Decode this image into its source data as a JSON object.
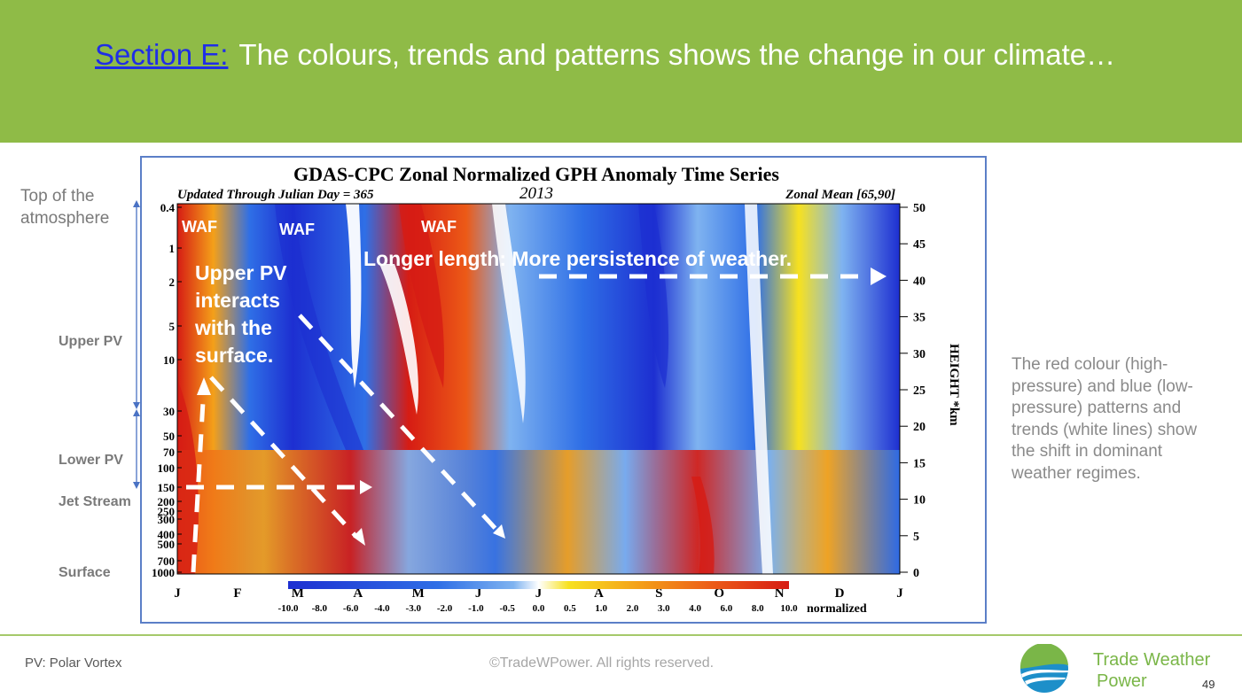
{
  "slide": {
    "title_link": "Section E:",
    "title_text": "The colours, trends and patterns shows the change in our climate…",
    "page_number": "49"
  },
  "left_labels": {
    "top": "Top of the atmosphere",
    "upper_pv": "Upper PV",
    "lower_pv": "Lower PV",
    "jet_stream": "Jet Stream",
    "surface": "Surface"
  },
  "chart": {
    "title": "GDAS-CPC Zonal Normalized GPH Anomaly Time Series",
    "subtitle_left": "Updated Through Julian Day = 365",
    "year": "2013",
    "subtitle_right": "Zonal Mean [65,90]",
    "y_left_ticks": [
      "0.4",
      "1",
      "2",
      "5",
      "10",
      "30",
      "50",
      "70",
      "100",
      "150",
      "200",
      "250",
      "300",
      "400",
      "500",
      "700",
      "1000"
    ],
    "y_right_label": "HEIGHT *km",
    "y_right_ticks": [
      "50",
      "45",
      "40",
      "35",
      "30",
      "25",
      "20",
      "15",
      "10",
      "5",
      "0"
    ],
    "months": [
      "J",
      "F",
      "M",
      "A",
      "M",
      "J",
      "J",
      "A",
      "S",
      "O",
      "N",
      "D",
      "J"
    ],
    "colorbar_ticks": [
      "-10.0",
      "-8.0",
      "-6.0",
      "-4.0",
      "-3.0",
      "-2.0",
      "-1.0",
      "-0.5",
      "0.0",
      "0.5",
      "1.0",
      "2.0",
      "3.0",
      "4.0",
      "6.0",
      "8.0",
      "10.0"
    ],
    "colorbar_label": "normalized",
    "colors": {
      "deep_blue": "#1d2fd1",
      "blue": "#2f6fe6",
      "light_blue": "#7fb3f0",
      "white": "#ffffff",
      "yellow": "#f7e11f",
      "orange": "#f4a019",
      "red_orange": "#ec5a17",
      "red": "#d61c14"
    },
    "annotations": {
      "waf_1": "WAF",
      "waf_2": "WAF",
      "waf_3": "WAF",
      "longer_length": "Longer length: More persistence of weather.",
      "upper_pv_interacts": [
        "Upper PV",
        "interacts",
        "with the",
        "surface."
      ]
    }
  },
  "description": "The red colour (high-pressure) and blue (low-pressure) patterns and trends (white lines) show the shift in dominant weather regimes.",
  "footer": {
    "pv_note": "PV: Polar Vortex",
    "copyright": "©TradeWPower. All rights reserved.",
    "brand_line1": "Trade Weather",
    "brand_line2": "Power"
  }
}
